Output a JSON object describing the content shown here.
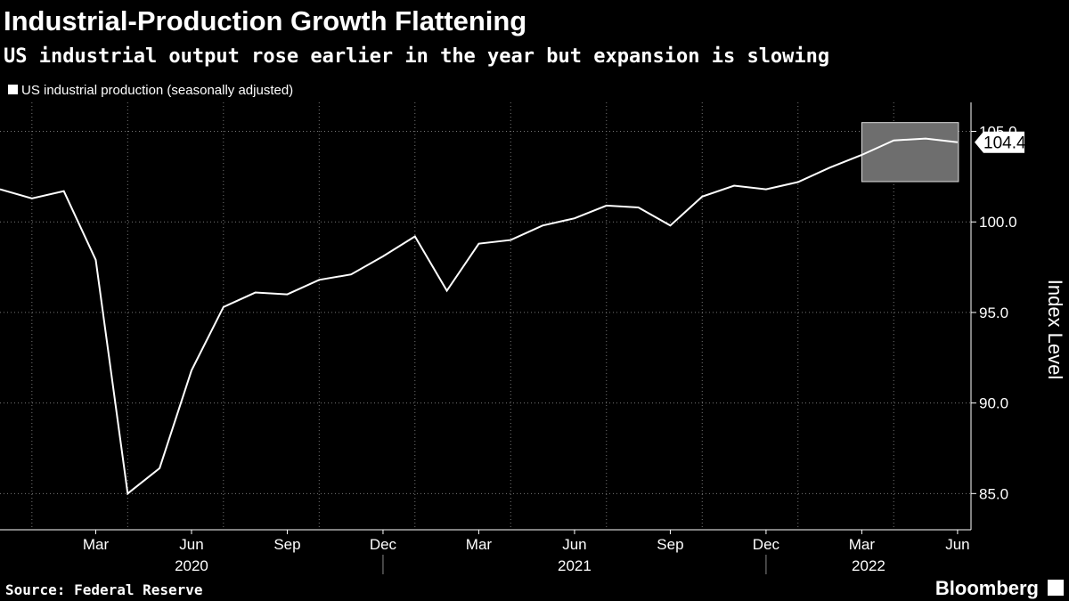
{
  "chart_data": {
    "type": "line",
    "title": "Industrial-Production Growth Flattening",
    "subtitle": "US industrial output rose earlier in the year but expansion is slowing",
    "y_label": "Index Level",
    "source": "Source: Federal Reserve",
    "brand": "Bloomberg",
    "categories": [
      null,
      null,
      null,
      "Mar",
      null,
      null,
      "Jun",
      null,
      null,
      "Sep",
      null,
      null,
      "Dec",
      null,
      null,
      "Mar",
      null,
      null,
      "Jun",
      null,
      null,
      "Sep",
      null,
      null,
      "Dec",
      null,
      null,
      "Mar",
      null,
      null,
      "Jun"
    ],
    "years": [
      "2020",
      "2021",
      "2022"
    ],
    "series": [
      {
        "name": "US industrial production (seasonally adjusted)",
        "color": "#ffffff",
        "values": [
          101.8,
          101.3,
          101.7,
          97.9,
          85.0,
          86.4,
          91.8,
          95.3,
          96.1,
          96.0,
          96.8,
          97.1,
          98.1,
          99.2,
          96.2,
          98.8,
          99.0,
          99.8,
          100.2,
          100.9,
          100.8,
          99.8,
          101.4,
          102.0,
          101.8,
          102.2,
          103.0,
          103.7,
          104.5,
          104.6,
          104.4
        ]
      }
    ],
    "ylim": [
      83,
      106.6
    ],
    "yticks": [
      {
        "value": 85,
        "label": "85.0"
      },
      {
        "value": 90,
        "label": "90.0"
      },
      {
        "value": 95,
        "label": "95.0"
      },
      {
        "value": 100,
        "label": "100.0"
      },
      {
        "value": 105,
        "label": "105.0"
      }
    ],
    "grid": true
  }
}
